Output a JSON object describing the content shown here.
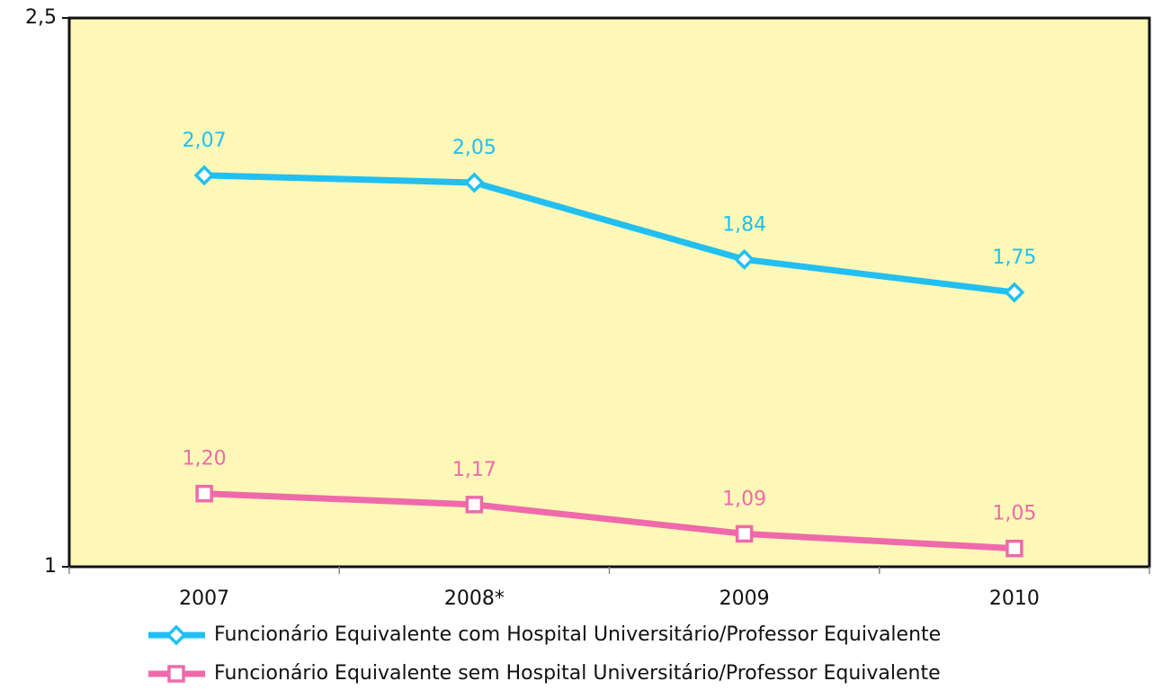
{
  "chart_data": {
    "type": "line",
    "categories": [
      "2007",
      "2008*",
      "2009",
      "2010"
    ],
    "series": [
      {
        "name": "Funcionário Equivalente com Hospital Universitário/Professor Equivalente",
        "color": "#22bff0",
        "marker": "diamond",
        "values": [
          2.07,
          2.05,
          1.84,
          1.75
        ],
        "value_labels": [
          "2,07",
          "2,05",
          "1,84",
          "1,75"
        ]
      },
      {
        "name": "Funcionário Equivalente sem Hospital Universitário/Professor Equivalente",
        "color": "#ef6aaa",
        "marker": "square",
        "values": [
          1.2,
          1.17,
          1.09,
          1.05
        ],
        "value_labels": [
          "1,20",
          "1,17",
          "1,09",
          "1,05"
        ]
      }
    ],
    "ylim": [
      1,
      2.5
    ],
    "yticks": [
      1,
      {
        "value": 2.5,
        "label": "2,5"
      }
    ],
    "plot_background": "#fdf8b8",
    "legend": "bottom"
  }
}
